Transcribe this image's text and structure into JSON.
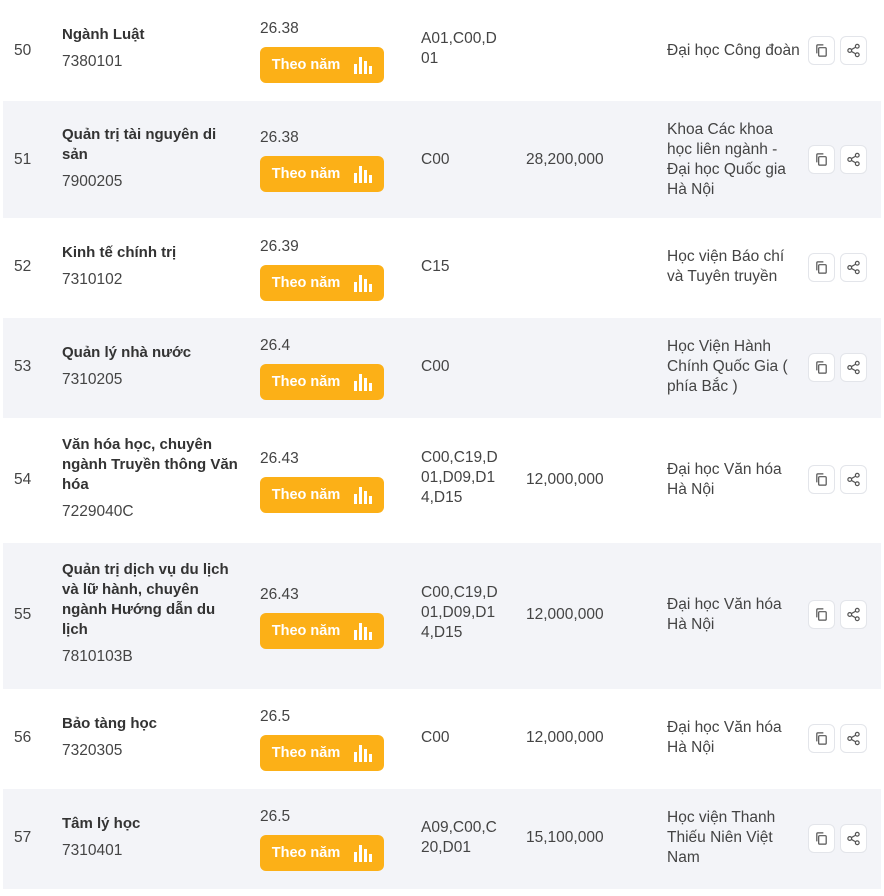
{
  "button_label": "Theo năm",
  "colors": {
    "accent": "#fcb017",
    "row_alt": "#f3f4f8"
  },
  "rows": [
    {
      "idx": "50",
      "name": "Ngành Luật",
      "code": "7380101",
      "score": "26.38",
      "combo": "A01,C00,D01",
      "fee": "",
      "school": "Đại học Công đoàn"
    },
    {
      "idx": "51",
      "name": "Quản trị tài nguyên di sản",
      "code": "7900205",
      "score": "26.38",
      "combo": "C00",
      "fee": "28,200,000",
      "school": "Khoa Các khoa học liên ngành - Đại học Quốc gia Hà Nội"
    },
    {
      "idx": "52",
      "name": "Kinh tế chính trị",
      "code": "7310102",
      "score": "26.39",
      "combo": "C15",
      "fee": "",
      "school": "Học viện Báo chí và Tuyên truyền"
    },
    {
      "idx": "53",
      "name": "Quản lý nhà nước",
      "code": "7310205",
      "score": "26.4",
      "combo": "C00",
      "fee": "",
      "school": "Học Viện Hành Chính Quốc Gia ( phía Bắc )"
    },
    {
      "idx": "54",
      "name": "Văn hóa học, chuyên ngành Truyền thông Văn hóa",
      "code": "7229040C",
      "score": "26.43",
      "combo": "C00,C19,D01,D09,D14,D15",
      "fee": "12,000,000",
      "school": "Đại học Văn hóa Hà Nội"
    },
    {
      "idx": "55",
      "name": "Quản trị dịch vụ du lịch và lữ hành, chuyên ngành Hướng dẫn du lịch",
      "code": "7810103B",
      "score": "26.43",
      "combo": "C00,C19,D01,D09,D14,D15",
      "fee": "12,000,000",
      "school": "Đại học Văn hóa Hà Nội"
    },
    {
      "idx": "56",
      "name": "Bảo tàng học",
      "code": "7320305",
      "score": "26.5",
      "combo": "C00",
      "fee": "12,000,000",
      "school": "Đại học Văn hóa Hà Nội"
    },
    {
      "idx": "57",
      "name": "Tâm lý học",
      "code": "7310401",
      "score": "26.5",
      "combo": "A09,C00,C20,D01",
      "fee": "15,100,000",
      "school": "Học viện Thanh Thiếu Niên Việt Nam"
    }
  ]
}
